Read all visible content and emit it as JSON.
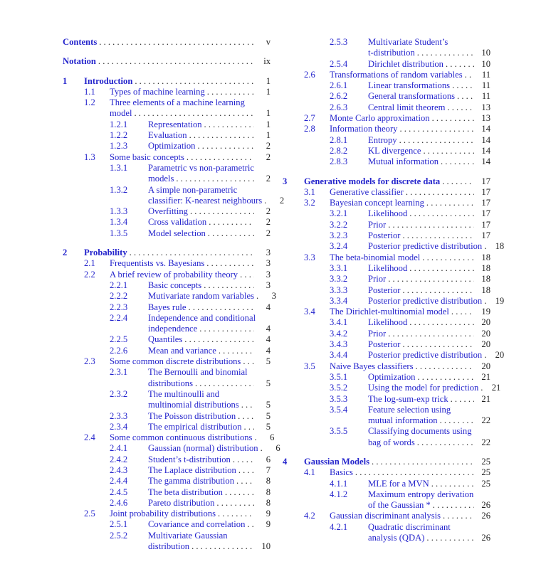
{
  "document": {
    "kind": "book-table-of-contents",
    "link_color": "#2424cc",
    "ink_color": "#222222",
    "page_background": "#ffffff"
  },
  "toc": {
    "columns": [
      {
        "entries": [
          {
            "type": "front",
            "num": "",
            "lines": [
              "Contents"
            ],
            "page": "v"
          },
          {
            "type": "front",
            "num": "",
            "lines": [
              "Notation"
            ],
            "page": "ix"
          },
          {
            "type": "chapter",
            "num": "1",
            "lines": [
              "Introduction"
            ],
            "page": "1"
          },
          {
            "type": "section",
            "num": "1.1",
            "lines": [
              "Types of machine learning"
            ],
            "page": "1"
          },
          {
            "type": "section",
            "num": "1.2",
            "lines": [
              "Three elements of a machine learning",
              "model"
            ],
            "page": "1"
          },
          {
            "type": "subsection",
            "num": "1.2.1",
            "lines": [
              "Representation"
            ],
            "page": "1"
          },
          {
            "type": "subsection",
            "num": "1.2.2",
            "lines": [
              "Evaluation"
            ],
            "page": "1"
          },
          {
            "type": "subsection",
            "num": "1.2.3",
            "lines": [
              "Optimization"
            ],
            "page": "2"
          },
          {
            "type": "section",
            "num": "1.3",
            "lines": [
              "Some basic concepts"
            ],
            "page": "2"
          },
          {
            "type": "subsection",
            "num": "1.3.1",
            "lines": [
              "Parametric vs non-parametric",
              "models"
            ],
            "page": "2"
          },
          {
            "type": "subsection",
            "num": "1.3.2",
            "lines": [
              "A simple non-parametric",
              "classifier: K-nearest neighbours"
            ],
            "page": "2"
          },
          {
            "type": "subsection",
            "num": "1.3.3",
            "lines": [
              "Overfitting"
            ],
            "page": "2"
          },
          {
            "type": "subsection",
            "num": "1.3.4",
            "lines": [
              "Cross validation"
            ],
            "page": "2"
          },
          {
            "type": "subsection",
            "num": "1.3.5",
            "lines": [
              "Model selection"
            ],
            "page": "2"
          },
          {
            "type": "chapter",
            "num": "2",
            "lines": [
              "Probability"
            ],
            "page": "3"
          },
          {
            "type": "section",
            "num": "2.1",
            "lines": [
              "Frequentists vs. Bayesians"
            ],
            "page": "3"
          },
          {
            "type": "section",
            "num": "2.2",
            "lines": [
              "A brief review of probability theory"
            ],
            "page": "3"
          },
          {
            "type": "subsection",
            "num": "2.2.1",
            "lines": [
              "Basic concepts"
            ],
            "page": "3"
          },
          {
            "type": "subsection",
            "num": "2.2.2",
            "lines": [
              "Mutivariate random variables"
            ],
            "page": "3"
          },
          {
            "type": "subsection",
            "num": "2.2.3",
            "lines": [
              "Bayes rule"
            ],
            "page": "4"
          },
          {
            "type": "subsection",
            "num": "2.2.4",
            "lines": [
              "Independence and conditional",
              "independence"
            ],
            "page": "4"
          },
          {
            "type": "subsection",
            "num": "2.2.5",
            "lines": [
              "Quantiles"
            ],
            "page": "4"
          },
          {
            "type": "subsection",
            "num": "2.2.6",
            "lines": [
              "Mean and variance"
            ],
            "page": "4"
          },
          {
            "type": "section",
            "num": "2.3",
            "lines": [
              "Some common discrete distributions"
            ],
            "page": "5"
          },
          {
            "type": "subsection",
            "num": "2.3.1",
            "lines": [
              "The Bernoulli and binomial",
              "distributions"
            ],
            "page": "5"
          },
          {
            "type": "subsection",
            "num": "2.3.2",
            "lines": [
              "The multinoulli and",
              "multinomial distributions"
            ],
            "page": "5"
          },
          {
            "type": "subsection",
            "num": "2.3.3",
            "lines": [
              "The Poisson distribution"
            ],
            "page": "5"
          },
          {
            "type": "subsection",
            "num": "2.3.4",
            "lines": [
              "The empirical distribution"
            ],
            "page": "5"
          },
          {
            "type": "section",
            "num": "2.4",
            "lines": [
              "Some common continuous distributions"
            ],
            "page": "6"
          },
          {
            "type": "subsection",
            "num": "2.4.1",
            "lines": [
              "Gaussian (normal) distribution"
            ],
            "page": "6"
          },
          {
            "type": "subsection",
            "num": "2.4.2",
            "lines": [
              "Student’s t-distribution"
            ],
            "page": "6"
          },
          {
            "type": "subsection",
            "num": "2.4.3",
            "lines": [
              "The Laplace distribution"
            ],
            "page": "7"
          },
          {
            "type": "subsection",
            "num": "2.4.4",
            "lines": [
              "The gamma distribution"
            ],
            "page": "8"
          },
          {
            "type": "subsection",
            "num": "2.4.5",
            "lines": [
              "The beta distribution"
            ],
            "page": "8"
          },
          {
            "type": "subsection",
            "num": "2.4.6",
            "lines": [
              "Pareto distribution"
            ],
            "page": "8"
          },
          {
            "type": "section",
            "num": "2.5",
            "lines": [
              "Joint probability distributions"
            ],
            "page": "9"
          },
          {
            "type": "subsection",
            "num": "2.5.1",
            "lines": [
              "Covariance and correlation"
            ],
            "page": "9"
          },
          {
            "type": "subsection",
            "num": "2.5.2",
            "lines": [
              "Multivariate Gaussian",
              "distribution"
            ],
            "page": "10"
          }
        ]
      },
      {
        "entries": [
          {
            "type": "subsection",
            "num": "2.5.3",
            "lines": [
              "Multivariate Student’s",
              "t-distribution"
            ],
            "page": "10"
          },
          {
            "type": "subsection",
            "num": "2.5.4",
            "lines": [
              "Dirichlet distribution"
            ],
            "page": "10"
          },
          {
            "type": "section",
            "num": "2.6",
            "lines": [
              "Transformations of random variables"
            ],
            "page": "11"
          },
          {
            "type": "subsection",
            "num": "2.6.1",
            "lines": [
              "Linear transformations"
            ],
            "page": "11"
          },
          {
            "type": "subsection",
            "num": "2.6.2",
            "lines": [
              "General transformations"
            ],
            "page": "11"
          },
          {
            "type": "subsection",
            "num": "2.6.3",
            "lines": [
              "Central limit theorem"
            ],
            "page": "13"
          },
          {
            "type": "section",
            "num": "2.7",
            "lines": [
              "Monte Carlo approximation"
            ],
            "page": "13"
          },
          {
            "type": "section",
            "num": "2.8",
            "lines": [
              "Information theory"
            ],
            "page": "14"
          },
          {
            "type": "subsection",
            "num": "2.8.1",
            "lines": [
              "Entropy"
            ],
            "page": "14"
          },
          {
            "type": "subsection",
            "num": "2.8.2",
            "lines": [
              "KL divergence"
            ],
            "page": "14"
          },
          {
            "type": "subsection",
            "num": "2.8.3",
            "lines": [
              "Mutual information"
            ],
            "page": "14"
          },
          {
            "type": "chapter",
            "num": "3",
            "lines": [
              "Generative models for discrete data"
            ],
            "page": "17"
          },
          {
            "type": "section",
            "num": "3.1",
            "lines": [
              "Generative classifier"
            ],
            "page": "17"
          },
          {
            "type": "section",
            "num": "3.2",
            "lines": [
              "Bayesian concept learning"
            ],
            "page": "17"
          },
          {
            "type": "subsection",
            "num": "3.2.1",
            "lines": [
              "Likelihood"
            ],
            "page": "17"
          },
          {
            "type": "subsection",
            "num": "3.2.2",
            "lines": [
              "Prior"
            ],
            "page": "17"
          },
          {
            "type": "subsection",
            "num": "3.2.3",
            "lines": [
              "Posterior"
            ],
            "page": "17"
          },
          {
            "type": "subsection",
            "num": "3.2.4",
            "lines": [
              "Posterior predictive distribution"
            ],
            "page": "18"
          },
          {
            "type": "section",
            "num": "3.3",
            "lines": [
              "The beta-binomial model"
            ],
            "page": "18"
          },
          {
            "type": "subsection",
            "num": "3.3.1",
            "lines": [
              "Likelihood"
            ],
            "page": "18"
          },
          {
            "type": "subsection",
            "num": "3.3.2",
            "lines": [
              "Prior"
            ],
            "page": "18"
          },
          {
            "type": "subsection",
            "num": "3.3.3",
            "lines": [
              "Posterior"
            ],
            "page": "18"
          },
          {
            "type": "subsection",
            "num": "3.3.4",
            "lines": [
              "Posterior predictive distribution"
            ],
            "page": "19"
          },
          {
            "type": "section",
            "num": "3.4",
            "lines": [
              "The Dirichlet-multinomial model"
            ],
            "page": "19"
          },
          {
            "type": "subsection",
            "num": "3.4.1",
            "lines": [
              "Likelihood"
            ],
            "page": "20"
          },
          {
            "type": "subsection",
            "num": "3.4.2",
            "lines": [
              "Prior"
            ],
            "page": "20"
          },
          {
            "type": "subsection",
            "num": "3.4.3",
            "lines": [
              "Posterior"
            ],
            "page": "20"
          },
          {
            "type": "subsection",
            "num": "3.4.4",
            "lines": [
              "Posterior predictive distribution"
            ],
            "page": "20"
          },
          {
            "type": "section",
            "num": "3.5",
            "lines": [
              "Naive Bayes classifiers"
            ],
            "page": "20"
          },
          {
            "type": "subsection",
            "num": "3.5.1",
            "lines": [
              "Optimization"
            ],
            "page": "21"
          },
          {
            "type": "subsection",
            "num": "3.5.2",
            "lines": [
              "Using the model for prediction"
            ],
            "page": "21"
          },
          {
            "type": "subsection",
            "num": "3.5.3",
            "lines": [
              "The log-sum-exp trick"
            ],
            "page": "21"
          },
          {
            "type": "subsection",
            "num": "3.5.4",
            "lines": [
              "Feature selection using",
              "mutual information"
            ],
            "page": "22"
          },
          {
            "type": "subsection",
            "num": "3.5.5",
            "lines": [
              "Classifying documents using",
              "bag of words"
            ],
            "page": "22"
          },
          {
            "type": "chapter",
            "num": "4",
            "lines": [
              "Gaussian Models"
            ],
            "page": "25"
          },
          {
            "type": "section",
            "num": "4.1",
            "lines": [
              "Basics"
            ],
            "page": "25"
          },
          {
            "type": "subsection",
            "num": "4.1.1",
            "lines": [
              "MLE for a MVN"
            ],
            "page": "25"
          },
          {
            "type": "subsection",
            "num": "4.1.2",
            "lines": [
              "Maximum entropy derivation",
              "of the Gaussian *"
            ],
            "page": "26"
          },
          {
            "type": "section",
            "num": "4.2",
            "lines": [
              "Gaussian discriminant analysis"
            ],
            "page": "26"
          },
          {
            "type": "subsection",
            "num": "4.2.1",
            "lines": [
              "Quadratic discriminant",
              "analysis (QDA)"
            ],
            "page": "26"
          }
        ]
      }
    ]
  }
}
